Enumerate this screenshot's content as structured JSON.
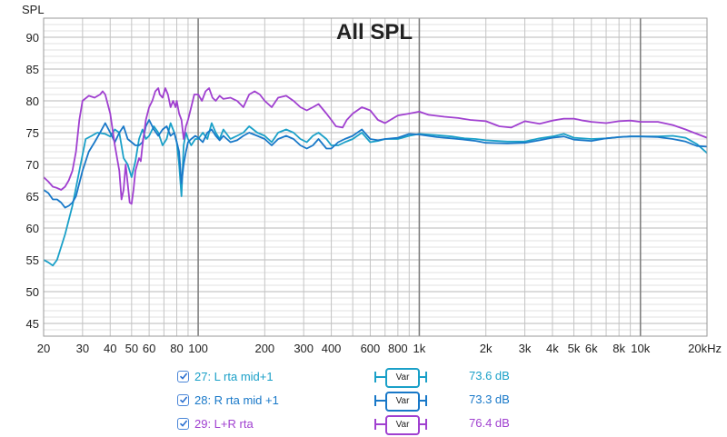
{
  "chart_data": {
    "type": "line",
    "title": "All SPL",
    "ylabel": "SPL",
    "xscale": "log",
    "xlim": [
      20,
      20000
    ],
    "ylim": [
      43,
      93
    ],
    "yticks": [
      45,
      50,
      55,
      60,
      65,
      70,
      75,
      80,
      85,
      90
    ],
    "xticks": [
      {
        "v": 20,
        "label": "20"
      },
      {
        "v": 30,
        "label": "30"
      },
      {
        "v": 40,
        "label": "40"
      },
      {
        "v": 50,
        "label": "50"
      },
      {
        "v": 60,
        "label": "60"
      },
      {
        "v": 80,
        "label": "80"
      },
      {
        "v": 100,
        "label": "100"
      },
      {
        "v": 200,
        "label": "200"
      },
      {
        "v": 300,
        "label": "300"
      },
      {
        "v": 400,
        "label": "400"
      },
      {
        "v": 600,
        "label": "600"
      },
      {
        "v": 800,
        "label": "800"
      },
      {
        "v": 1000,
        "label": "1k"
      },
      {
        "v": 2000,
        "label": "2k"
      },
      {
        "v": 3000,
        "label": "3k"
      },
      {
        "v": 4000,
        "label": "4k"
      },
      {
        "v": 5000,
        "label": "5k"
      },
      {
        "v": 6000,
        "label": "6k"
      },
      {
        "v": 8000,
        "label": "8k"
      },
      {
        "v": 10000,
        "label": "10k"
      },
      {
        "v": 20000,
        "label": "20kHz"
      }
    ],
    "grid": true,
    "series": [
      {
        "name": "27: L rta mid+1",
        "color": "#1aa0c8",
        "points": [
          [
            20,
            55
          ],
          [
            21,
            54.6
          ],
          [
            22,
            54.1
          ],
          [
            23,
            55
          ],
          [
            25,
            59
          ],
          [
            27,
            63.5
          ],
          [
            29,
            69
          ],
          [
            31,
            74
          ],
          [
            33,
            74.5
          ],
          [
            35,
            75
          ],
          [
            38,
            74.8
          ],
          [
            40,
            74.4
          ],
          [
            42,
            75.5
          ],
          [
            44,
            75
          ],
          [
            46,
            71
          ],
          [
            48,
            70
          ],
          [
            50,
            68
          ],
          [
            52,
            70.5
          ],
          [
            54,
            74
          ],
          [
            56,
            75.5
          ],
          [
            58,
            74
          ],
          [
            60,
            74.5
          ],
          [
            63,
            76
          ],
          [
            66,
            75
          ],
          [
            69,
            73
          ],
          [
            72,
            74
          ],
          [
            75,
            76.5
          ],
          [
            78,
            75
          ],
          [
            80,
            73.5
          ],
          [
            82,
            70
          ],
          [
            84,
            65
          ],
          [
            86,
            73
          ],
          [
            88,
            75
          ],
          [
            90,
            74
          ],
          [
            93,
            73
          ],
          [
            97,
            74
          ],
          [
            100,
            74
          ],
          [
            105,
            75
          ],
          [
            110,
            74
          ],
          [
            115,
            76.5
          ],
          [
            120,
            75
          ],
          [
            125,
            74
          ],
          [
            130,
            75.5
          ],
          [
            140,
            74
          ],
          [
            150,
            74.5
          ],
          [
            160,
            75
          ],
          [
            170,
            76
          ],
          [
            185,
            75
          ],
          [
            200,
            74.5
          ],
          [
            215,
            73.5
          ],
          [
            230,
            75
          ],
          [
            250,
            75.5
          ],
          [
            270,
            75
          ],
          [
            290,
            74
          ],
          [
            310,
            73.5
          ],
          [
            330,
            74.5
          ],
          [
            350,
            75
          ],
          [
            380,
            74
          ],
          [
            400,
            73
          ],
          [
            430,
            73
          ],
          [
            460,
            73.5
          ],
          [
            500,
            74
          ],
          [
            550,
            75
          ],
          [
            600,
            73.5
          ],
          [
            650,
            73.7
          ],
          [
            700,
            74
          ],
          [
            800,
            74
          ],
          [
            900,
            74.5
          ],
          [
            1000,
            74.8
          ],
          [
            1200,
            74.6
          ],
          [
            1400,
            74.4
          ],
          [
            1600,
            74.1
          ],
          [
            1800,
            74
          ],
          [
            2000,
            73.8
          ],
          [
            2500,
            73.6
          ],
          [
            3000,
            73.6
          ],
          [
            3500,
            74.1
          ],
          [
            4000,
            74.4
          ],
          [
            4500,
            74.8
          ],
          [
            5000,
            74.2
          ],
          [
            6000,
            74
          ],
          [
            7000,
            74.1
          ],
          [
            8000,
            74.3
          ],
          [
            9000,
            74.4
          ],
          [
            10000,
            74.4
          ],
          [
            12000,
            74.4
          ],
          [
            14000,
            74.5
          ],
          [
            16000,
            74.2
          ],
          [
            18000,
            73.2
          ],
          [
            20000,
            71.8
          ]
        ]
      },
      {
        "name": "28: R rta mid +1",
        "color": "#1878c8",
        "points": [
          [
            20,
            66
          ],
          [
            21,
            65.5
          ],
          [
            22,
            64.5
          ],
          [
            23,
            64.5
          ],
          [
            24,
            64
          ],
          [
            25,
            63.2
          ],
          [
            26,
            63.5
          ],
          [
            27,
            64
          ],
          [
            28,
            65
          ],
          [
            30,
            69
          ],
          [
            32,
            72
          ],
          [
            34,
            73.5
          ],
          [
            36,
            75
          ],
          [
            38,
            76.5
          ],
          [
            40,
            75
          ],
          [
            42,
            73.5
          ],
          [
            44,
            75
          ],
          [
            46,
            76
          ],
          [
            48,
            74
          ],
          [
            50,
            73.5
          ],
          [
            52,
            73
          ],
          [
            54,
            73
          ],
          [
            56,
            73.5
          ],
          [
            58,
            76
          ],
          [
            60,
            77
          ],
          [
            63,
            75.5
          ],
          [
            66,
            74.5
          ],
          [
            69,
            75.5
          ],
          [
            72,
            76
          ],
          [
            75,
            74.5
          ],
          [
            78,
            75
          ],
          [
            80,
            73.5
          ],
          [
            82,
            72
          ],
          [
            84,
            67
          ],
          [
            86,
            70
          ],
          [
            88,
            72
          ],
          [
            90,
            73.5
          ],
          [
            93,
            74
          ],
          [
            97,
            74.5
          ],
          [
            100,
            74.2
          ],
          [
            105,
            73.5
          ],
          [
            110,
            75
          ],
          [
            115,
            75.5
          ],
          [
            120,
            74.5
          ],
          [
            125,
            73.8
          ],
          [
            130,
            74.5
          ],
          [
            140,
            73.5
          ],
          [
            150,
            73.8
          ],
          [
            160,
            74.5
          ],
          [
            170,
            75
          ],
          [
            185,
            74.5
          ],
          [
            200,
            74
          ],
          [
            215,
            73
          ],
          [
            230,
            74
          ],
          [
            250,
            74.5
          ],
          [
            270,
            74
          ],
          [
            290,
            73
          ],
          [
            310,
            72.5
          ],
          [
            330,
            73
          ],
          [
            350,
            74
          ],
          [
            380,
            72.5
          ],
          [
            400,
            72.5
          ],
          [
            430,
            73.5
          ],
          [
            460,
            74
          ],
          [
            500,
            74.5
          ],
          [
            550,
            75.5
          ],
          [
            600,
            74
          ],
          [
            650,
            73.8
          ],
          [
            700,
            74
          ],
          [
            800,
            74.2
          ],
          [
            900,
            74.8
          ],
          [
            1000,
            74.7
          ],
          [
            1200,
            74.3
          ],
          [
            1400,
            74.1
          ],
          [
            1600,
            73.9
          ],
          [
            1800,
            73.7
          ],
          [
            2000,
            73.4
          ],
          [
            2500,
            73.3
          ],
          [
            3000,
            73.4
          ],
          [
            3500,
            73.8
          ],
          [
            4000,
            74.2
          ],
          [
            4500,
            74.4
          ],
          [
            5000,
            73.9
          ],
          [
            6000,
            73.7
          ],
          [
            7000,
            74.1
          ],
          [
            8000,
            74.3
          ],
          [
            9000,
            74.4
          ],
          [
            10000,
            74.4
          ],
          [
            12000,
            74.3
          ],
          [
            14000,
            74
          ],
          [
            16000,
            73.6
          ],
          [
            18000,
            72.9
          ],
          [
            20000,
            72.8
          ]
        ]
      },
      {
        "name": "29: L+R rta",
        "color": "#a040d0",
        "points": [
          [
            20,
            68
          ],
          [
            21,
            67.3
          ],
          [
            22,
            66.5
          ],
          [
            23,
            66.3
          ],
          [
            24,
            66
          ],
          [
            25,
            66.5
          ],
          [
            26,
            67.5
          ],
          [
            27,
            69
          ],
          [
            28,
            72
          ],
          [
            29,
            77
          ],
          [
            30,
            80
          ],
          [
            32,
            80.8
          ],
          [
            34,
            80.5
          ],
          [
            36,
            81
          ],
          [
            37,
            81.5
          ],
          [
            38,
            81
          ],
          [
            40,
            78
          ],
          [
            42,
            73
          ],
          [
            44,
            69
          ],
          [
            45,
            64.5
          ],
          [
            46,
            66
          ],
          [
            47,
            70
          ],
          [
            48,
            67
          ],
          [
            49,
            64
          ],
          [
            50,
            63.8
          ],
          [
            51,
            66
          ],
          [
            52,
            69
          ],
          [
            54,
            71
          ],
          [
            55,
            70.5
          ],
          [
            56,
            73
          ],
          [
            58,
            77
          ],
          [
            60,
            79
          ],
          [
            62,
            80
          ],
          [
            64,
            81.5
          ],
          [
            66,
            82
          ],
          [
            67,
            81
          ],
          [
            69,
            80.5
          ],
          [
            71,
            82
          ],
          [
            73,
            81
          ],
          [
            75,
            79
          ],
          [
            77,
            80
          ],
          [
            79,
            79
          ],
          [
            80,
            80
          ],
          [
            82,
            78
          ],
          [
            84,
            77
          ],
          [
            86,
            74
          ],
          [
            88,
            76
          ],
          [
            90,
            77
          ],
          [
            93,
            79
          ],
          [
            96,
            81
          ],
          [
            100,
            81
          ],
          [
            104,
            80
          ],
          [
            108,
            81.5
          ],
          [
            112,
            82
          ],
          [
            116,
            80.5
          ],
          [
            120,
            80
          ],
          [
            125,
            80.8
          ],
          [
            130,
            80.3
          ],
          [
            140,
            80.5
          ],
          [
            150,
            80
          ],
          [
            160,
            79
          ],
          [
            170,
            81
          ],
          [
            180,
            81.5
          ],
          [
            190,
            81
          ],
          [
            200,
            80
          ],
          [
            215,
            79
          ],
          [
            230,
            80.5
          ],
          [
            250,
            80.8
          ],
          [
            270,
            80
          ],
          [
            290,
            79
          ],
          [
            310,
            78.5
          ],
          [
            330,
            79
          ],
          [
            350,
            79.5
          ],
          [
            380,
            78
          ],
          [
            400,
            77
          ],
          [
            420,
            76
          ],
          [
            450,
            75.8
          ],
          [
            470,
            77
          ],
          [
            500,
            78
          ],
          [
            550,
            79
          ],
          [
            600,
            78.5
          ],
          [
            650,
            77
          ],
          [
            700,
            76.5
          ],
          [
            800,
            77.7
          ],
          [
            900,
            78
          ],
          [
            1000,
            78.3
          ],
          [
            1100,
            77.8
          ],
          [
            1300,
            77.5
          ],
          [
            1500,
            77.3
          ],
          [
            1700,
            77
          ],
          [
            2000,
            76.8
          ],
          [
            2300,
            76
          ],
          [
            2600,
            75.8
          ],
          [
            3000,
            76.8
          ],
          [
            3500,
            76.4
          ],
          [
            4000,
            76.9
          ],
          [
            4500,
            77.2
          ],
          [
            5000,
            77.2
          ],
          [
            5500,
            76.9
          ],
          [
            6000,
            76.7
          ],
          [
            7000,
            76.5
          ],
          [
            8000,
            76.8
          ],
          [
            9000,
            76.9
          ],
          [
            10000,
            76.7
          ],
          [
            12000,
            76.7
          ],
          [
            14000,
            76.2
          ],
          [
            16000,
            75.5
          ],
          [
            18000,
            74.8
          ],
          [
            20000,
            74.2
          ]
        ]
      }
    ]
  },
  "legend": [
    {
      "label": "27: L rta mid+1",
      "button": "Var",
      "value": "73.6 dB",
      "color": "#1aa0c8"
    },
    {
      "label": "28: R rta mid +1",
      "button": "Var",
      "value": "73.3 dB",
      "color": "#1878c8"
    },
    {
      "label": "29: L+R rta",
      "button": "Var",
      "value": "76.4 dB",
      "color": "#a040d0"
    }
  ]
}
